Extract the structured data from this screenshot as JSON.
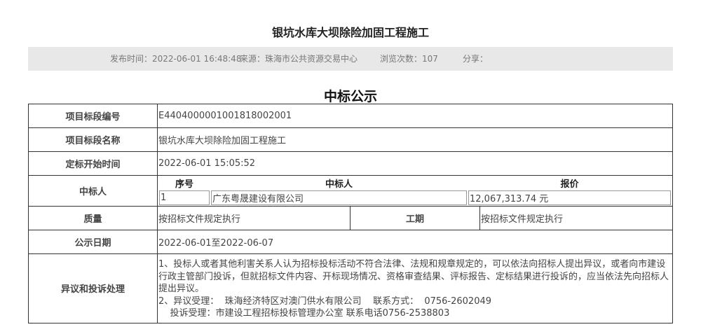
{
  "title": "银坑水库大坝除险加固工程施工",
  "meta": {
    "publish": "发布时间：2022-06-01 16:48:48",
    "source": "来源：珠海市公共资源交易中心",
    "views": "浏览次数：107",
    "share": "分享："
  },
  "heading": "中标公示",
  "rows": {
    "code": {
      "label": "项目标段编号",
      "value": "E4404000001001818002001"
    },
    "name": {
      "label": "项目标段名称",
      "value": "银坑水库大坝除险加固工程施工"
    },
    "start": {
      "label": "定标开始时间",
      "value": "2022-06-01 15:05:52"
    },
    "winner": {
      "label": "中标人",
      "headers": [
        "序号",
        "中标人",
        "报价"
      ],
      "no": "1",
      "company": "广东粤晟建设有限公司",
      "price": "12,067,313.74 元"
    },
    "quality": {
      "label": "质量",
      "value": "按招标文件规定执行",
      "period_label": "工期",
      "period_value": "按招标文件规定执行"
    },
    "date": {
      "label": "公示日期",
      "value": "2022-06-01至2022-06-07"
    },
    "objection": {
      "label": "异议和投诉处理",
      "lines": [
        "1、投标人或者其他利害关系人认为招标投标活动不符合法律、法规和规章规定的，可以依法向招标人提出异议，或者向市建设行政主管部门投诉，但就招标文件内容、开标现场情况、资格审查结果、评标报告、定标结果进行投诉的，应当依法先向招标人提出异议。",
        "2、异议受理：  珠海经济特区对澳门供水有限公司    联系方式：  0756-2602049",
        "    投诉受理：市建设工程招标投标管理办公室 联系电话0756-2538803"
      ]
    }
  }
}
